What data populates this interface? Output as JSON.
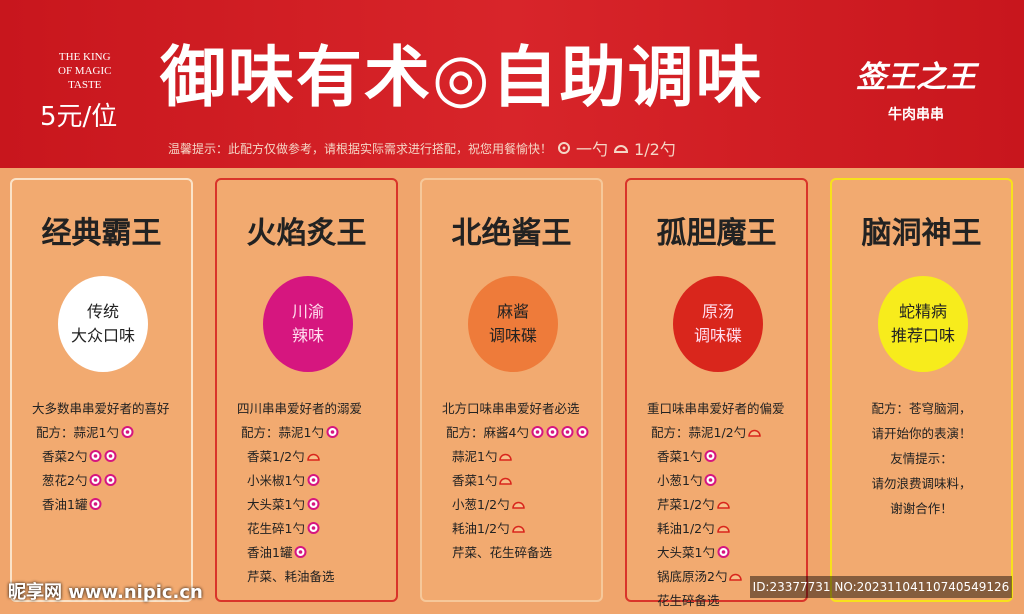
{
  "header": {
    "english": [
      "THE KING",
      "OF MAGIC",
      "TASTE"
    ],
    "price": "5元/位",
    "title": "御味有术◎自助调味",
    "logo": "签王之王",
    "logo_sub": "牛肉串串",
    "tip": "温馨提示：此配方仅做参考，请根据实际需求进行搭配，祝您用餐愉快！",
    "legend_full": "一勺",
    "legend_half": "1/2勺"
  },
  "cards": [
    {
      "title": "经典霸王",
      "badge": [
        "传统",
        "大众口味"
      ],
      "badge_color": "#ffffff",
      "border": "#fbe3c8",
      "lines": [
        "大多数串串爱好者的喜好",
        "配方：蒜泥1勺",
        "香菜2勺",
        "葱花2勺",
        "香油1罐"
      ]
    },
    {
      "title": "火焰炙王",
      "badge": [
        "川渝",
        "辣味"
      ],
      "badge_color": "#d6167f",
      "border": "#d9342a",
      "lines": [
        "四川串串爱好者的溺爱",
        "配方：蒜泥1勺",
        "香菜1/2勺",
        "小米椒1勺",
        "大头菜1勺",
        "花生碎1勺",
        "香油1罐",
        "芹菜、耗油备选"
      ]
    },
    {
      "title": "北绝酱王",
      "badge": [
        "麻酱",
        "调味碟"
      ],
      "badge_color": "#ee7b3a",
      "border": "#f6c89a",
      "lines": [
        "北方口味串串爱好者必选",
        "配方：麻酱4勺",
        "蒜泥1勺",
        "香菜1勺",
        "小葱1/2勺",
        "耗油1/2勺",
        "芹菜、花生碎备选"
      ]
    },
    {
      "title": "孤胆魔王",
      "badge": [
        "原汤",
        "调味碟"
      ],
      "badge_color": "#d9261c",
      "border": "#d9342a",
      "lines": [
        "重口味串串爱好者的偏爱",
        "配方：蒜泥1/2勺",
        "香菜1勺",
        "小葱1勺",
        "芹菜1/2勺",
        "耗油1/2勺",
        "大头菜1勺",
        "锅底原汤2勺",
        "花生碎备选"
      ]
    },
    {
      "title": "脑洞神王",
      "badge": [
        "蛇精病",
        "推荐口味"
      ],
      "badge_color": "#f7ec1c",
      "border": "#f7e11c",
      "lines": [
        "配方：苍穹脑洞，",
        "请开始你的表演！",
        "友情提示：",
        "请勿浪费调味料，",
        "谢谢合作！"
      ]
    }
  ],
  "watermark": {
    "site": "昵享网 www.nipic.cn",
    "id": "ID:23377731 NO:20231104110740549126"
  }
}
